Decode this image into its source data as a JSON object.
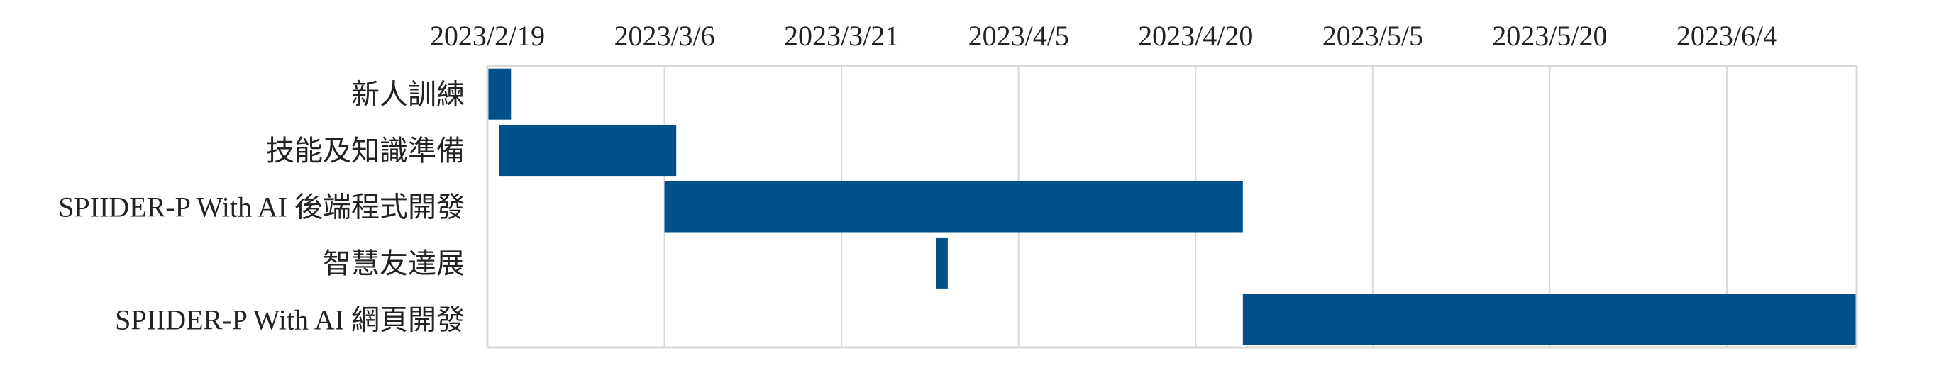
{
  "chart_data": {
    "type": "bar",
    "orientation": "horizontal-gantt",
    "x_axis_position": "top",
    "grid": true,
    "xlim": [
      "2023/2/19",
      "2023/6/15"
    ],
    "x_ticks": [
      "2023/2/19",
      "2023/3/6",
      "2023/3/21",
      "2023/4/5",
      "2023/4/20",
      "2023/5/5",
      "2023/5/20",
      "2023/6/4"
    ],
    "categories": [
      "新人訓練",
      "技能及知識準備",
      "SPIIDER-P With AI 後端程式開發",
      "智慧友達展",
      "SPIIDER-P With AI 網頁開發"
    ],
    "series": [
      {
        "start": [
          "2023/2/19",
          "2023/2/20",
          "2023/3/6",
          "2023/3/29",
          "2023/4/24"
        ],
        "end": [
          "2023/2/21",
          "2023/3/7",
          "2023/4/24",
          "2023/3/30",
          "2023/6/15"
        ]
      }
    ],
    "colors": {
      "bar": "#00508a",
      "grid": "#d9d9d9",
      "text": "#222222"
    }
  }
}
